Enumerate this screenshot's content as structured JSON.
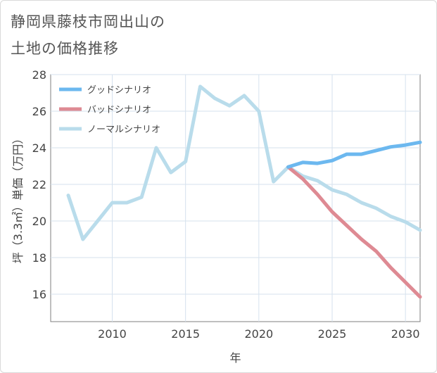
{
  "title_lines": [
    "静岡県藤枝市岡出山の",
    "土地の価格推移"
  ],
  "chart_data": {
    "type": "line",
    "title": "静岡県藤枝市岡出山の土地の価格推移",
    "xlabel": "年",
    "ylabel": "坪（3.3㎡）単価（万円）",
    "xlim": [
      2005.8,
      2031
    ],
    "ylim": [
      14.5,
      28
    ],
    "xticks": [
      2010,
      2015,
      2020,
      2025,
      2030
    ],
    "yticks": [
      16,
      18,
      20,
      22,
      24,
      26,
      28
    ],
    "grid": true,
    "legend_position": "top-left",
    "series": [
      {
        "name": "グッドシナリオ",
        "color": "#6cb8ef",
        "x": [
          2022,
          2023,
          2024,
          2025,
          2026,
          2027,
          2028,
          2029,
          2030,
          2031
        ],
        "y": [
          22.95,
          23.2,
          23.15,
          23.3,
          23.65,
          23.65,
          23.85,
          24.05,
          24.15,
          24.3
        ]
      },
      {
        "name": "バッドシナリオ",
        "color": "#de8a93",
        "x": [
          2022,
          2023,
          2024,
          2025,
          2026,
          2027,
          2028,
          2029,
          2030,
          2031
        ],
        "y": [
          22.95,
          22.3,
          21.45,
          20.5,
          19.75,
          19.0,
          18.35,
          17.45,
          16.65,
          15.85
        ]
      },
      {
        "name": "ノーマルシナリオ",
        "color": "#b9dceb",
        "x": [
          2007,
          2008,
          2009,
          2010,
          2011,
          2012,
          2013,
          2014,
          2015,
          2016,
          2017,
          2018,
          2019,
          2020,
          2021,
          2022,
          2023,
          2024,
          2025,
          2026,
          2027,
          2028,
          2029,
          2030,
          2031
        ],
        "y": [
          21.4,
          19.0,
          20.0,
          21.0,
          21.0,
          21.3,
          24.0,
          22.65,
          23.25,
          27.35,
          26.7,
          26.3,
          26.85,
          26.0,
          22.15,
          22.95,
          22.45,
          22.2,
          21.7,
          21.45,
          21.0,
          20.7,
          20.25,
          19.95,
          19.5
        ]
      }
    ]
  }
}
